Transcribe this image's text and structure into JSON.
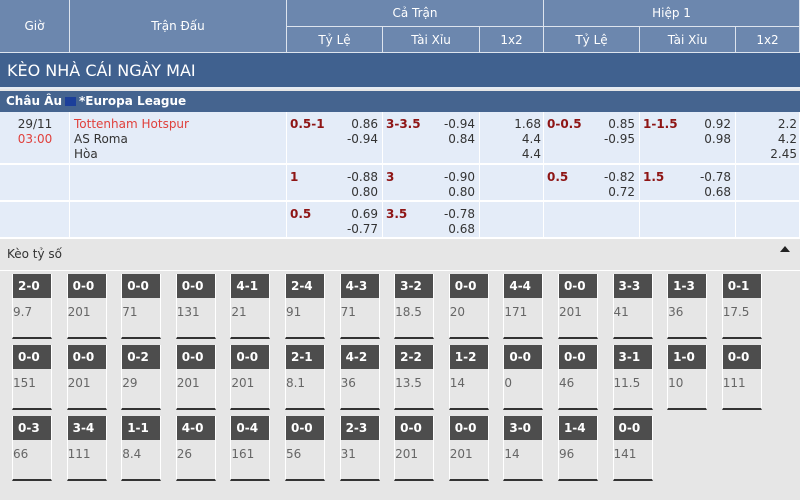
{
  "header": {
    "time": "Giờ",
    "match": "Trận Đấu",
    "full_time": "Cả Trận",
    "first_half": "Hiệp 1",
    "handicap": "Tỷ Lệ",
    "over_under": "Tài Xỉu",
    "x12": "1x2"
  },
  "banner": "KÈO NHÀ CÁI NGÀY MAI",
  "league": {
    "region": "Châu Âu",
    "name": "*Europa League",
    "flag_icon": "eu-flag"
  },
  "match": {
    "date": "29/11",
    "time": "03:00",
    "home": "Tottenham Hotspur",
    "away": "AS Roma",
    "draw": "Hòa"
  },
  "rows": [
    {
      "ft_hdp": "0.5-1",
      "ft_hdp_odds": [
        "0.86",
        "-0.94"
      ],
      "ft_ou": "3-3.5",
      "ft_ou_odds": [
        "-0.94",
        "0.84"
      ],
      "ft_1x2": [
        "1.68",
        "4.4",
        "4.4"
      ],
      "h1_hdp": "0-0.5",
      "h1_hdp_odds": [
        "0.85",
        "-0.95"
      ],
      "h1_ou": "1-1.5",
      "h1_ou_odds": [
        "0.92",
        "0.98"
      ],
      "h1_1x2": [
        "2.2",
        "4.2",
        "2.45"
      ]
    },
    {
      "ft_hdp": "1",
      "ft_hdp_odds": [
        "-0.88",
        "0.80"
      ],
      "ft_ou": "3",
      "ft_ou_odds": [
        "-0.90",
        "0.80"
      ],
      "h1_hdp": "0.5",
      "h1_hdp_odds": [
        "-0.82",
        "0.72"
      ],
      "h1_ou": "1.5",
      "h1_ou_odds": [
        "-0.78",
        "0.68"
      ]
    },
    {
      "ft_hdp": "0.5",
      "ft_hdp_odds": [
        "0.69",
        "-0.77"
      ],
      "ft_ou": "3.5",
      "ft_ou_odds": [
        "-0.78",
        "0.68"
      ]
    }
  ],
  "correct_score": {
    "title": "Kèo tỷ số",
    "collapse_icon": "caret-up",
    "items": [
      [
        "2-0",
        "9.7"
      ],
      [
        "0-0",
        "201"
      ],
      [
        "0-0",
        "71"
      ],
      [
        "0-0",
        "131"
      ],
      [
        "4-1",
        "21"
      ],
      [
        "2-4",
        "91"
      ],
      [
        "4-3",
        "71"
      ],
      [
        "3-2",
        "18.5"
      ],
      [
        "0-0",
        "20"
      ],
      [
        "4-4",
        "171"
      ],
      [
        "0-0",
        "201"
      ],
      [
        "3-3",
        "41"
      ],
      [
        "1-3",
        "36"
      ],
      [
        "0-1",
        "17.5"
      ],
      [
        "0-0",
        "151"
      ],
      [
        "0-0",
        "201"
      ],
      [
        "0-2",
        "29"
      ],
      [
        "0-0",
        "201"
      ],
      [
        "0-0",
        "201"
      ],
      [
        "2-1",
        "8.1"
      ],
      [
        "4-2",
        "36"
      ],
      [
        "2-2",
        "13.5"
      ],
      [
        "1-2",
        "14"
      ],
      [
        "0-0",
        "0"
      ],
      [
        "0-0",
        "46"
      ],
      [
        "3-1",
        "11.5"
      ],
      [
        "1-0",
        "10"
      ],
      [
        "0-0",
        "111"
      ],
      [
        "0-3",
        "66"
      ],
      [
        "3-4",
        "111"
      ],
      [
        "1-1",
        "8.4"
      ],
      [
        "4-0",
        "26"
      ],
      [
        "0-4",
        "161"
      ],
      [
        "0-0",
        "56"
      ],
      [
        "2-3",
        "31"
      ],
      [
        "0-0",
        "201"
      ],
      [
        "0-0",
        "201"
      ],
      [
        "3-0",
        "14"
      ],
      [
        "1-4",
        "96"
      ],
      [
        "0-0",
        "141"
      ]
    ]
  }
}
